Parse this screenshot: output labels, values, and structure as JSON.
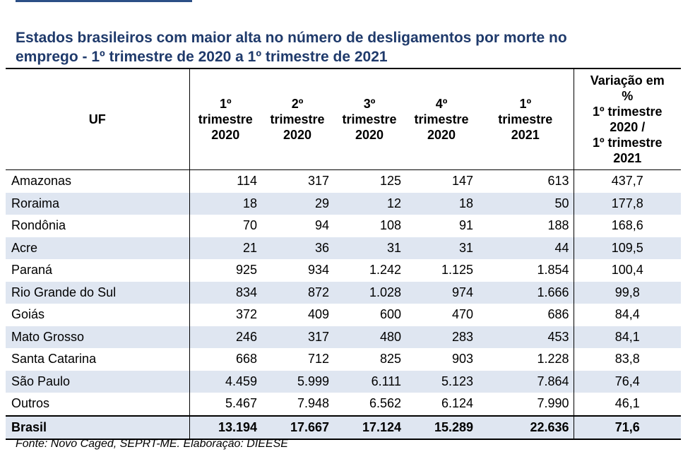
{
  "title_line1": "Estados brasileiros com maior alta no número de desligamentos por morte no",
  "title_line2": "emprego - 1º trimestre de 2020 a 1º trimestre de 2021",
  "headers": {
    "uf": "UF",
    "q1_2020": [
      "1º",
      "trimestre",
      "2020"
    ],
    "q2_2020": [
      "2º",
      "trimestre",
      "2020"
    ],
    "q3_2020": [
      "3º",
      "trimestre",
      "2020"
    ],
    "q4_2020": [
      "4º",
      "trimestre",
      "2020"
    ],
    "q1_2021": [
      "1º",
      "trimestre",
      "2021"
    ],
    "variation": [
      "Variação em",
      "%",
      "1º trimestre",
      "2020 /",
      "1º trimestre",
      "2021"
    ]
  },
  "rows": [
    {
      "uf": "Amazonas",
      "q1_2020": "114",
      "q2_2020": "317",
      "q3_2020": "125",
      "q4_2020": "147",
      "q1_2021": "613",
      "variation": "437,7"
    },
    {
      "uf": "Roraima",
      "q1_2020": "18",
      "q2_2020": "29",
      "q3_2020": "12",
      "q4_2020": "18",
      "q1_2021": "50",
      "variation": "177,8"
    },
    {
      "uf": "Rondônia",
      "q1_2020": "70",
      "q2_2020": "94",
      "q3_2020": "108",
      "q4_2020": "91",
      "q1_2021": "188",
      "variation": "168,6"
    },
    {
      "uf": "Acre",
      "q1_2020": "21",
      "q2_2020": "36",
      "q3_2020": "31",
      "q4_2020": "31",
      "q1_2021": "44",
      "variation": "109,5"
    },
    {
      "uf": "Paraná",
      "q1_2020": "925",
      "q2_2020": "934",
      "q3_2020": "1.242",
      "q4_2020": "1.125",
      "q1_2021": "1.854",
      "variation": "100,4"
    },
    {
      "uf": "Rio Grande do Sul",
      "q1_2020": "834",
      "q2_2020": "872",
      "q3_2020": "1.028",
      "q4_2020": "974",
      "q1_2021": "1.666",
      "variation": "99,8"
    },
    {
      "uf": "Goiás",
      "q1_2020": "372",
      "q2_2020": "409",
      "q3_2020": "600",
      "q4_2020": "470",
      "q1_2021": "686",
      "variation": "84,4"
    },
    {
      "uf": "Mato Grosso",
      "q1_2020": "246",
      "q2_2020": "317",
      "q3_2020": "480",
      "q4_2020": "283",
      "q1_2021": "453",
      "variation": "84,1"
    },
    {
      "uf": "Santa Catarina",
      "q1_2020": "668",
      "q2_2020": "712",
      "q3_2020": "825",
      "q4_2020": "903",
      "q1_2021": "1.228",
      "variation": "83,8"
    },
    {
      "uf": "São Paulo",
      "q1_2020": "4.459",
      "q2_2020": "5.999",
      "q3_2020": "6.111",
      "q4_2020": "5.123",
      "q1_2021": "7.864",
      "variation": "76,4"
    },
    {
      "uf": "Outros",
      "q1_2020": "5.467",
      "q2_2020": "7.948",
      "q3_2020": "6.562",
      "q4_2020": "6.124",
      "q1_2021": "7.990",
      "variation": "46,1"
    }
  ],
  "total": {
    "uf": "Brasil",
    "q1_2020": "13.194",
    "q2_2020": "17.667",
    "q3_2020": "17.124",
    "q4_2020": "15.289",
    "q1_2021": "22.636",
    "variation": "71,6"
  },
  "source": "Fonte: Novo Caged, SEPRT-ME. Elaboração: DIEESE",
  "colors": {
    "title": "#1f3a6b",
    "shade": "#dfe6f1",
    "accent_rule": "#2c4f86"
  }
}
